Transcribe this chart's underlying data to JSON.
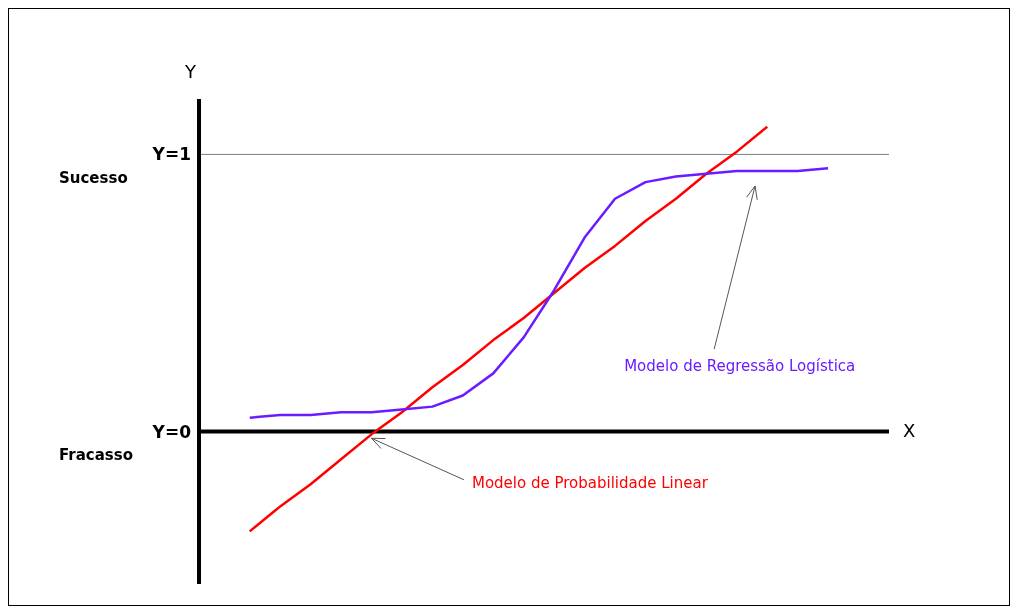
{
  "chart_data": {
    "type": "line",
    "xlabel": "X",
    "ylabel": "Y",
    "categories": [
      null,
      null,
      null,
      null,
      null,
      null,
      null,
      null,
      null,
      null,
      null,
      null,
      null,
      null,
      null,
      null,
      null,
      null,
      null,
      null
    ],
    "series": [
      {
        "name": "Modelo de Probabilidade Linear",
        "color": "#ff0000",
        "values": [
          -0.36,
          -0.27,
          -0.19,
          -0.1,
          -0.01,
          0.07,
          0.16,
          0.24,
          0.33,
          0.41,
          0.5,
          0.59,
          0.67,
          0.76,
          0.84,
          0.93,
          1.01,
          1.1,
          null,
          null
        ]
      },
      {
        "name": "Modelo de Regressão Logística",
        "color": "#6a1bff",
        "values": [
          0.05,
          0.06,
          0.06,
          0.07,
          0.07,
          0.08,
          0.09,
          0.13,
          0.21,
          0.34,
          0.51,
          0.7,
          0.84,
          0.9,
          0.92,
          0.93,
          0.94,
          0.94,
          0.94,
          0.95
        ]
      }
    ],
    "ylim": [
      -0.55,
      1.2
    ],
    "yticks": [
      {
        "value": 0,
        "label": "Y=0"
      },
      {
        "value": 1,
        "label": "Y=1"
      }
    ],
    "tick_labels": "y",
    "ref_lines": [
      {
        "axis": "y",
        "value": 1,
        "color": "#808080"
      }
    ],
    "annotations": [
      "Sucesso",
      "Fracasso"
    ],
    "marker": "none",
    "line_style": "solid"
  }
}
